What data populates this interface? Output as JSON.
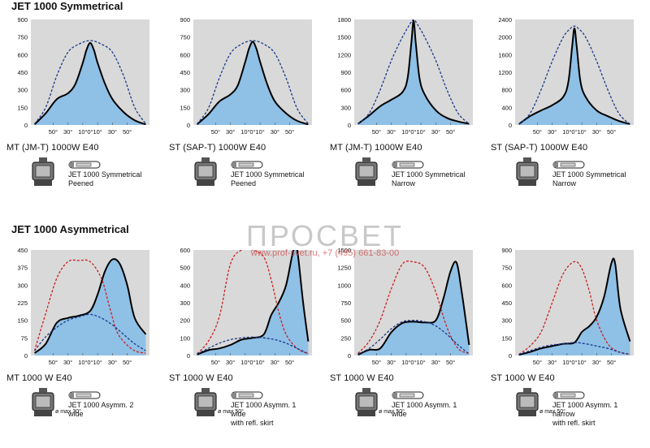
{
  "sections": {
    "symmetrical_title": "JET 1000 Symmetrical",
    "asymmetrical_title": "JET 1000 Asymmetrical"
  },
  "watermark": {
    "brand": "ПРОСВЕТ",
    "contact": "www.prof-svet.ru, +7 (495) 661-83-00"
  },
  "colors": {
    "fill": "#8fc0e6",
    "panel": "#d9d9d9",
    "main_curve": "#000000",
    "blue_dashed": "#1a3a8a",
    "red_dashed": "#cc2020"
  },
  "chart_data": [
    {
      "type": "area",
      "row": 0,
      "caption": "MT (JM-T) 1000W  E40",
      "legend": [
        "JET 1000 Symmetrical",
        "Peened"
      ],
      "yticks": [
        "900",
        "750",
        "600",
        "450",
        "300",
        "150",
        "0"
      ],
      "ylim": [
        0,
        900
      ],
      "xticks": [
        "50°",
        "30°",
        "10°",
        "0°",
        "10°",
        "30°",
        "50°"
      ],
      "series": [
        {
          "style": "solid",
          "color": "#000000",
          "fill": true,
          "x": [
            -75,
            -60,
            -45,
            -30,
            -20,
            -10,
            -5,
            0,
            5,
            10,
            20,
            30,
            45,
            60,
            75
          ],
          "y": [
            5,
            100,
            220,
            270,
            350,
            530,
            640,
            700,
            640,
            530,
            350,
            220,
            110,
            40,
            5
          ]
        },
        {
          "style": "dashed",
          "color": "#1a3a8a",
          "x": [
            -75,
            -60,
            -45,
            -30,
            -15,
            0,
            15,
            30,
            45,
            60,
            75
          ],
          "y": [
            10,
            150,
            420,
            620,
            690,
            720,
            690,
            620,
            420,
            150,
            10
          ]
        }
      ]
    },
    {
      "type": "area",
      "row": 0,
      "caption": "ST (SAP-T) 1000W  E40",
      "legend": [
        "JET 1000 Symmetrical",
        "Peened"
      ],
      "yticks": [
        "900",
        "750",
        "600",
        "450",
        "300",
        "150",
        "0"
      ],
      "ylim": [
        0,
        900
      ],
      "xticks": [
        "50°",
        "30°",
        "10°",
        "0°",
        "10°",
        "30°",
        "50°"
      ],
      "series": [
        {
          "style": "solid",
          "color": "#000000",
          "fill": true,
          "x": [
            -75,
            -60,
            -45,
            -30,
            -20,
            -10,
            -5,
            0,
            5,
            10,
            20,
            30,
            45,
            60,
            75
          ],
          "y": [
            5,
            90,
            200,
            260,
            340,
            540,
            650,
            710,
            650,
            540,
            340,
            200,
            100,
            35,
            5
          ]
        },
        {
          "style": "dashed",
          "color": "#1a3a8a",
          "x": [
            -75,
            -60,
            -45,
            -30,
            -15,
            0,
            15,
            30,
            45,
            60,
            75
          ],
          "y": [
            10,
            140,
            400,
            610,
            690,
            720,
            690,
            610,
            400,
            140,
            10
          ]
        }
      ]
    },
    {
      "type": "area",
      "row": 0,
      "caption": "MT (JM-T) 1000W  E40",
      "legend": [
        "JET 1000 Symmetrical",
        "Narrow"
      ],
      "yticks": [
        "1800",
        "1500",
        "1200",
        "900",
        "600",
        "300",
        "0"
      ],
      "ylim": [
        0,
        1800
      ],
      "xticks": [
        "50°",
        "30°",
        "10°",
        "0°",
        "10°",
        "30°",
        "50°"
      ],
      "series": [
        {
          "style": "solid",
          "color": "#000000",
          "fill": true,
          "x": [
            -75,
            -60,
            -45,
            -30,
            -15,
            -8,
            -3,
            0,
            3,
            8,
            15,
            30,
            45,
            60,
            75
          ],
          "y": [
            20,
            160,
            320,
            430,
            560,
            800,
            1400,
            1780,
            1400,
            800,
            520,
            250,
            120,
            60,
            20
          ]
        },
        {
          "style": "dashed",
          "color": "#1a3a8a",
          "x": [
            -75,
            -60,
            -45,
            -30,
            -15,
            -5,
            0,
            5,
            15,
            30,
            45,
            60,
            75
          ],
          "y": [
            20,
            200,
            600,
            1100,
            1500,
            1720,
            1800,
            1720,
            1500,
            1100,
            600,
            200,
            20
          ]
        }
      ]
    },
    {
      "type": "area",
      "row": 0,
      "caption": "ST (SAP-T) 1000W  E40",
      "legend": [
        "JET 1000 Symmetrical",
        "Narrow"
      ],
      "yticks": [
        "2400",
        "2000",
        "1600",
        "1200",
        "800",
        "400",
        "0"
      ],
      "ylim": [
        0,
        2400
      ],
      "xticks": [
        "50°",
        "30°",
        "10°",
        "0°",
        "10°",
        "30°",
        "50°"
      ],
      "series": [
        {
          "style": "solid",
          "color": "#000000",
          "fill": true,
          "x": [
            -75,
            -60,
            -45,
            -30,
            -15,
            -8,
            -3,
            0,
            3,
            8,
            15,
            30,
            45,
            60,
            75
          ],
          "y": [
            20,
            200,
            330,
            450,
            640,
            1000,
            1800,
            2200,
            1800,
            1000,
            640,
            330,
            200,
            90,
            20
          ]
        },
        {
          "style": "dashed",
          "color": "#1a3a8a",
          "x": [
            -75,
            -60,
            -45,
            -30,
            -15,
            -5,
            0,
            5,
            15,
            30,
            45,
            60,
            75
          ],
          "y": [
            20,
            260,
            800,
            1450,
            2000,
            2200,
            2250,
            2200,
            2000,
            1450,
            800,
            260,
            20
          ]
        }
      ]
    },
    {
      "type": "area",
      "row": 1,
      "caption": "MT 1000 W  E40",
      "legend": [
        "JET 1000 Asymm. 2",
        "wide"
      ],
      "beam": "ø max 30°",
      "yticks": [
        "450",
        "375",
        "300",
        "225",
        "150",
        "75",
        "0"
      ],
      "ylim": [
        0,
        450
      ],
      "xticks": [
        "50°",
        "30°",
        "10°",
        "0°",
        "10°",
        "30°",
        "50°"
      ],
      "series": [
        {
          "style": "solid",
          "color": "#000000",
          "fill": true,
          "x": [
            -75,
            -60,
            -45,
            -30,
            -15,
            0,
            10,
            20,
            30,
            40,
            50,
            60,
            75
          ],
          "y": [
            10,
            50,
            140,
            160,
            170,
            190,
            260,
            360,
            410,
            390,
            300,
            160,
            90
          ]
        },
        {
          "style": "dashed",
          "color": "#cc2020",
          "x": [
            -75,
            -60,
            -45,
            -30,
            -15,
            0,
            15,
            25,
            35,
            45,
            60,
            75
          ],
          "y": [
            20,
            180,
            330,
            400,
            405,
            400,
            330,
            220,
            110,
            60,
            20,
            10
          ]
        },
        {
          "style": "dashed",
          "color": "#1a3a8a",
          "x": [
            -75,
            -60,
            -45,
            -30,
            -15,
            0,
            15,
            30,
            45,
            60,
            75
          ],
          "y": [
            20,
            80,
            120,
            150,
            165,
            175,
            160,
            130,
            90,
            50,
            20
          ]
        }
      ]
    },
    {
      "type": "area",
      "row": 1,
      "caption": "ST 1000 W  E40",
      "legend": [
        "JET 1000 Asymm. 1",
        "wide",
        "with refl. skirt"
      ],
      "beam": "ø max 50°",
      "yticks": [
        "600",
        "500",
        "400",
        "300",
        "200",
        "100",
        "0"
      ],
      "ylim": [
        0,
        600
      ],
      "xticks": [
        "50°",
        "30°",
        "10°",
        "0°",
        "10°",
        "30°",
        "50°"
      ],
      "series": [
        {
          "style": "solid",
          "color": "#000000",
          "fill": true,
          "x": [
            -75,
            -60,
            -45,
            -30,
            -15,
            0,
            15,
            25,
            35,
            45,
            55,
            60,
            68,
            75
          ],
          "y": [
            5,
            30,
            40,
            60,
            90,
            100,
            120,
            230,
            300,
            400,
            600,
            600,
            300,
            80
          ]
        },
        {
          "style": "dashed",
          "color": "#cc2020",
          "x": [
            -75,
            -60,
            -45,
            -30,
            -15,
            0,
            15,
            25,
            35,
            45,
            60,
            75
          ],
          "y": [
            10,
            80,
            220,
            520,
            600,
            600,
            560,
            430,
            250,
            120,
            40,
            10
          ]
        },
        {
          "style": "dashed",
          "color": "#1a3a8a",
          "x": [
            -75,
            -60,
            -45,
            -30,
            -15,
            0,
            15,
            30,
            45,
            60,
            75
          ],
          "y": [
            10,
            40,
            70,
            90,
            100,
            105,
            100,
            90,
            70,
            40,
            10
          ]
        }
      ]
    },
    {
      "type": "area",
      "row": 1,
      "caption": "ST 1000 W  E40",
      "legend": [
        "JET 1000 Asymm. 1",
        "wide"
      ],
      "beam": "ø max 50°",
      "yticks": [
        "1500",
        "1250",
        "1000",
        "750",
        "500",
        "250",
        "0"
      ],
      "ylim": [
        0,
        1500
      ],
      "xticks": [
        "50°",
        "30°",
        "10°",
        "0°",
        "10°",
        "30°",
        "50°"
      ],
      "series": [
        {
          "style": "solid",
          "color": "#000000",
          "fill": true,
          "x": [
            -75,
            -60,
            -45,
            -30,
            -15,
            0,
            15,
            30,
            40,
            50,
            58,
            65,
            75
          ],
          "y": [
            10,
            80,
            100,
            330,
            460,
            480,
            470,
            500,
            800,
            1200,
            1320,
            900,
            150
          ]
        },
        {
          "style": "dashed",
          "color": "#cc2020",
          "x": [
            -75,
            -60,
            -45,
            -30,
            -15,
            0,
            15,
            30,
            45,
            60,
            75
          ],
          "y": [
            30,
            200,
            500,
            950,
            1300,
            1330,
            1250,
            900,
            400,
            100,
            30
          ]
        },
        {
          "style": "dashed",
          "color": "#1a3a8a",
          "x": [
            -75,
            -60,
            -45,
            -30,
            -15,
            0,
            15,
            30,
            45,
            60,
            75
          ],
          "y": [
            20,
            100,
            230,
            380,
            480,
            500,
            480,
            420,
            300,
            150,
            20
          ]
        }
      ]
    },
    {
      "type": "area",
      "row": 1,
      "caption": "ST 1000 W  E40",
      "legend": [
        "JET 1000 Asymm. 1",
        "narrow",
        "with refl. skirt"
      ],
      "beam": "ø max 50°",
      "yticks": [
        "900",
        "750",
        "600",
        "450",
        "300",
        "150",
        "0"
      ],
      "ylim": [
        0,
        900
      ],
      "xticks": [
        "50°",
        "30°",
        "10°",
        "0°",
        "10°",
        "30°",
        "50°"
      ],
      "series": [
        {
          "style": "solid",
          "color": "#000000",
          "fill": true,
          "x": [
            -75,
            -60,
            -45,
            -30,
            -15,
            0,
            10,
            20,
            30,
            40,
            50,
            55,
            62,
            75
          ],
          "y": [
            5,
            30,
            60,
            80,
            100,
            110,
            200,
            250,
            330,
            500,
            790,
            780,
            400,
            120
          ]
        },
        {
          "style": "dashed",
          "color": "#cc2020",
          "x": [
            -75,
            -60,
            -45,
            -30,
            -15,
            0,
            10,
            20,
            30,
            45,
            60,
            75
          ],
          "y": [
            10,
            80,
            200,
            450,
            700,
            800,
            740,
            550,
            300,
            100,
            30,
            10
          ]
        },
        {
          "style": "dashed",
          "color": "#1a3a8a",
          "x": [
            -75,
            -60,
            -45,
            -30,
            -15,
            0,
            15,
            30,
            45,
            60,
            75
          ],
          "y": [
            10,
            40,
            70,
            90,
            100,
            110,
            100,
            80,
            60,
            30,
            10
          ]
        }
      ]
    }
  ]
}
